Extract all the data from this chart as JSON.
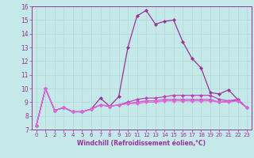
{
  "xlabel": "Windchill (Refroidissement éolien,°C)",
  "xlim": [
    -0.5,
    23.5
  ],
  "ylim": [
    7,
    16
  ],
  "xticks": [
    0,
    1,
    2,
    3,
    4,
    5,
    6,
    7,
    8,
    9,
    10,
    11,
    12,
    13,
    14,
    15,
    16,
    17,
    18,
    19,
    20,
    21,
    22,
    23
  ],
  "yticks": [
    7,
    8,
    9,
    10,
    11,
    12,
    13,
    14,
    15,
    16
  ],
  "background_color": "#c5e8e8",
  "grid_color": "#b0d8d8",
  "line_colors": [
    "#993399",
    "#bb44bb",
    "#cc55cc",
    "#dd66dd"
  ],
  "series": [
    [
      7.3,
      10.0,
      8.4,
      8.6,
      8.3,
      8.3,
      8.5,
      9.3,
      8.7,
      9.4,
      13.0,
      15.3,
      15.7,
      14.7,
      14.9,
      15.0,
      13.4,
      12.2,
      11.5,
      9.7,
      9.6,
      9.9,
      9.2,
      8.6
    ],
    [
      7.3,
      10.0,
      8.4,
      8.6,
      8.3,
      8.3,
      8.5,
      8.8,
      8.7,
      8.8,
      9.0,
      9.2,
      9.3,
      9.3,
      9.4,
      9.5,
      9.5,
      9.5,
      9.5,
      9.5,
      9.2,
      9.1,
      9.2,
      8.6
    ],
    [
      7.3,
      10.0,
      8.4,
      8.6,
      8.3,
      8.3,
      8.5,
      8.8,
      8.7,
      8.8,
      8.9,
      9.0,
      9.1,
      9.1,
      9.2,
      9.2,
      9.2,
      9.2,
      9.2,
      9.2,
      9.0,
      9.1,
      9.1,
      8.6
    ],
    [
      7.3,
      10.0,
      8.4,
      8.6,
      8.3,
      8.3,
      8.5,
      8.8,
      8.7,
      8.8,
      8.9,
      8.9,
      9.0,
      9.0,
      9.1,
      9.1,
      9.1,
      9.1,
      9.1,
      9.1,
      9.0,
      9.0,
      9.1,
      8.6
    ]
  ]
}
